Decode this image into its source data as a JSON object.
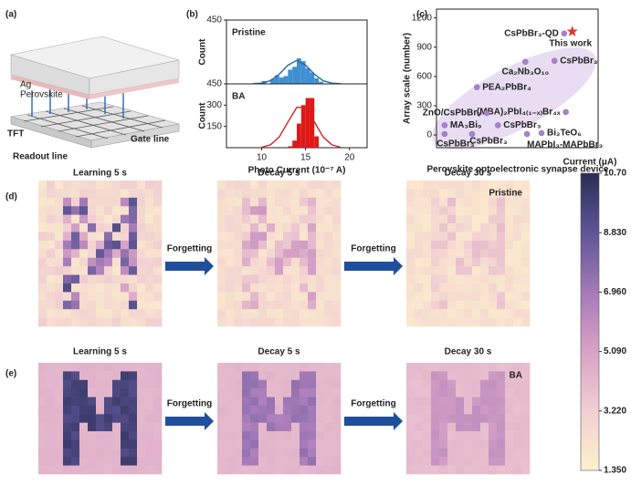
{
  "panel_labels": {
    "a": "(a)",
    "b": "(b)",
    "c": "(c)",
    "d": "(d)",
    "e": "(e)"
  },
  "diagram": {
    "ag": "Ag",
    "perovskite": "Perovskite",
    "tft": "TFT",
    "gate_line": "Gate line",
    "readout_line": "Readout line"
  },
  "chart_data": [
    {
      "type": "histogram",
      "label": "Pristine",
      "y_label": "Count",
      "color": "#3f8fd2",
      "bins": [
        10,
        10.5,
        11,
        11.5,
        12,
        12.5,
        13,
        13.5,
        14,
        14.5,
        15,
        15.5,
        16,
        16.5,
        17
      ],
      "values": [
        20,
        0,
        35,
        60,
        45,
        55,
        100,
        120,
        180,
        160,
        110,
        80,
        40,
        15
      ],
      "fit": {
        "x": [
          9,
          10,
          11,
          12,
          13,
          14,
          15,
          16,
          17,
          18,
          19
        ],
        "values": [
          1,
          5,
          22,
          68,
          132,
          165,
          132,
          68,
          22,
          5,
          1
        ],
        "color": "#2a66b0"
      },
      "xlim": [
        6,
        22
      ],
      "ylim": [
        0,
        450
      ],
      "yticks": [
        450
      ]
    },
    {
      "type": "histogram",
      "label": "BA",
      "y_label": "Count",
      "x_label": "Photo Current (10⁻⁷ A)",
      "color": "#e01818",
      "bins": [
        13,
        13.5,
        14,
        14.5,
        15,
        15.5,
        16,
        16.5
      ],
      "values": [
        10,
        50,
        170,
        300,
        350,
        350,
        80
      ],
      "fit": {
        "x": [
          10,
          11,
          12,
          13,
          14,
          15,
          16,
          17,
          18,
          19
        ],
        "values": [
          3,
          20,
          75,
          182,
          284,
          284,
          182,
          75,
          20,
          3
        ],
        "color": "#d42020"
      },
      "xlim": [
        6,
        22
      ],
      "ylim": [
        0,
        450
      ],
      "yticks": [
        150,
        300,
        450
      ],
      "xticks": [
        10,
        15,
        20
      ]
    },
    {
      "type": "scatter",
      "y_label": "Array scale (number)",
      "x_label": "Perovskite optoelectronic synapse device",
      "color": "#a97fcf",
      "labels": [
        "CsPbBr₃-QD",
        "CsPbBr₃",
        "Ca₂Nb₃O₁₀",
        "PEA₂PbBr₄",
        "(MBA)₂PbI₄₍₁₋ₓ₎Br₄ₓ",
        "ZnO/CsPbBr₃",
        "MA₃Bi₉",
        "CsPbBr₃",
        "Bi₂TeO₆",
        "CsPbBr₃",
        "CsPbBr₃",
        "MAPbI₃-MAPbBr₃"
      ],
      "x": [
        7.9,
        7.3,
        5.5,
        2.5,
        8.0,
        3.1,
        0.5,
        3.8,
        6.5,
        0.5,
        2.2,
        5.6
      ],
      "values": [
        1040,
        760,
        750,
        490,
        235,
        225,
        100,
        100,
        20,
        10,
        10,
        10
      ],
      "highlight": {
        "name": "This work",
        "x": 8.4,
        "value": 1060,
        "color": "#e3342b"
      },
      "xlim": [
        0,
        10
      ],
      "ylim": [
        -130,
        1290
      ],
      "yticks": [
        0,
        300,
        600,
        900,
        1200
      ]
    }
  ],
  "maps": {
    "rows": [
      {
        "titles": [
          "Learning 5 s",
          "Decay 5 s",
          "Decay 30 s"
        ],
        "arrows": [
          "Forgetting",
          "Forgetting"
        ],
        "tag": "Pristine"
      },
      {
        "titles": [
          "Learning 5 s",
          "Decay 5 s",
          "Decay 30 s"
        ],
        "arrows": [
          "Forgetting",
          "Forgetting"
        ],
        "tag": "BA"
      }
    ],
    "colorbar": {
      "title": "Current (μA)",
      "lim": [
        1.35,
        10.7
      ],
      "ticks": [
        {
          "value": 1.35,
          "label": "1.350"
        },
        {
          "value": 3.22,
          "label": "3.220"
        },
        {
          "value": 5.09,
          "label": "5.090"
        },
        {
          "value": 6.96,
          "label": "6.960"
        },
        {
          "value": 8.83,
          "label": "8.830"
        },
        {
          "value": 10.7,
          "label": "10.70"
        }
      ],
      "colors": [
        "#fdf1cc",
        "#f1cfd2",
        "#d8a2c6",
        "#a57ab8",
        "#5d5696",
        "#2b2d55"
      ]
    }
  }
}
